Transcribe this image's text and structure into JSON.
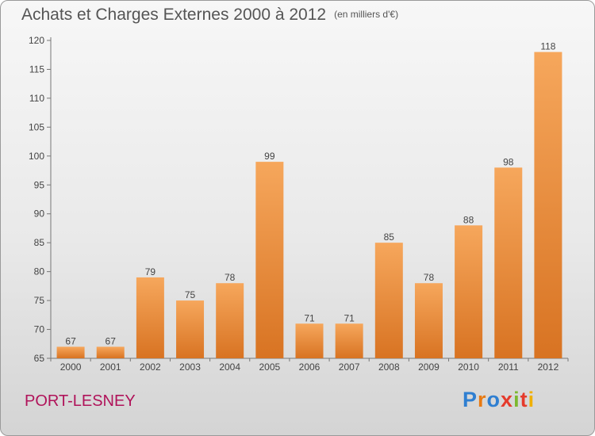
{
  "header": {
    "title": "Achats et Charges Externes 2000 à 2012",
    "unit": "(en milliers d'€)"
  },
  "footer": {
    "place": "PORT-LESNEY",
    "brand_letters": [
      "P",
      "r",
      "o",
      "x",
      "i",
      "t",
      "i"
    ],
    "brand_colors": [
      "#2f7fd1",
      "#e87a12",
      "#2f7fd1",
      "#e53b2c",
      "#7cb82f",
      "#e53b2c",
      "#f0b000"
    ]
  },
  "colors": {
    "bar_light": "#f6a75c",
    "bar_dark": "#d87322",
    "place": "#b0135a"
  },
  "chart_data": {
    "type": "bar",
    "title": "Achats et Charges Externes 2000 à 2012",
    "categories": [
      "2000",
      "2001",
      "2002",
      "2003",
      "2004",
      "2005",
      "2006",
      "2007",
      "2008",
      "2009",
      "2010",
      "2011",
      "2012"
    ],
    "values": [
      67,
      67,
      79,
      75,
      78,
      99,
      71,
      71,
      85,
      78,
      88,
      98,
      118
    ],
    "ylim": [
      65,
      120
    ],
    "yticks": [
      65,
      70,
      75,
      80,
      85,
      90,
      95,
      100,
      105,
      110,
      115,
      120
    ],
    "grid": false,
    "data_labels": true
  }
}
